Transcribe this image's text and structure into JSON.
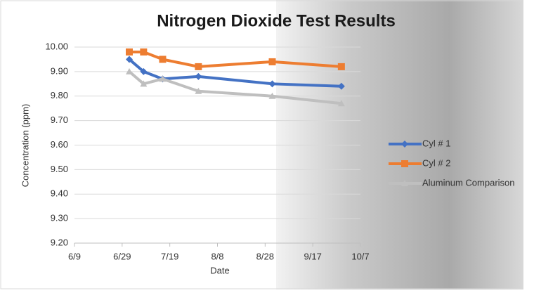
{
  "chart_data": {
    "type": "line",
    "title": "Nitrogen Dioxide Test Results",
    "x_label": "Date",
    "y_label": "Concentration (ppm)",
    "x": [
      "7/2",
      "7/8",
      "7/16",
      "7/31",
      "8/31",
      "9/29"
    ],
    "xlim": [
      "6/9",
      "10/7"
    ],
    "xticks": [
      "6/9",
      "6/29",
      "7/19",
      "8/8",
      "8/28",
      "9/17",
      "10/7"
    ],
    "ylim": [
      9.2,
      10.0
    ],
    "yticks": [
      {
        "value": 9.2,
        "label": "9.20"
      },
      {
        "value": 9.3,
        "label": "9.30"
      },
      {
        "value": 9.4,
        "label": "9.40"
      },
      {
        "value": 9.5,
        "label": "9.50"
      },
      {
        "value": 9.6,
        "label": "9.60"
      },
      {
        "value": 9.7,
        "label": "9.70"
      },
      {
        "value": 9.8,
        "label": "9.80"
      },
      {
        "value": 9.9,
        "label": "9.90"
      },
      {
        "value": 10.0,
        "label": "10.00"
      }
    ],
    "grid": true,
    "legend": "right",
    "series": [
      {
        "name": "Cyl # 1",
        "color": "#4472c4",
        "marker": "diamond",
        "values": [
          9.95,
          9.9,
          9.87,
          9.88,
          9.85,
          9.84
        ]
      },
      {
        "name": "Cyl # 2",
        "color": "#ed7d31",
        "marker": "square",
        "values": [
          9.98,
          9.98,
          9.95,
          9.92,
          9.94,
          9.92
        ]
      },
      {
        "name": "Aluminum Comparison",
        "color": "#bfbfbf",
        "marker": "triangle",
        "values": [
          9.9,
          9.85,
          9.87,
          9.82,
          9.8,
          9.77
        ]
      }
    ]
  }
}
